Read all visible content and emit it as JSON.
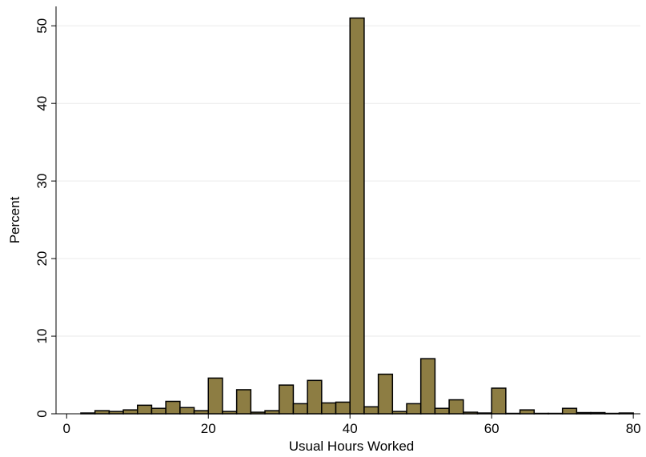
{
  "chart_data": {
    "type": "histogram",
    "xlabel": "Usual Hours Worked",
    "ylabel": "Percent",
    "bins": [
      2,
      4,
      6,
      8,
      10,
      12,
      14,
      16,
      18,
      20,
      22,
      24,
      26,
      28,
      30,
      32,
      34,
      36,
      38,
      40,
      42,
      44,
      46,
      48,
      50,
      52,
      54,
      56,
      58,
      60,
      62,
      64,
      66,
      68,
      70,
      72,
      74,
      76,
      78,
      80
    ],
    "values": [
      0.1,
      0.4,
      0.3,
      0.5,
      1.1,
      0.7,
      1.6,
      0.8,
      0.4,
      4.6,
      0.3,
      3.1,
      0.2,
      0.4,
      3.7,
      1.3,
      4.3,
      1.4,
      1.5,
      51,
      0.9,
      5.1,
      0.3,
      1.3,
      7.1,
      0.7,
      1.8,
      0.2,
      0.1,
      3.3,
      0.05,
      0.5,
      0.05,
      0.05,
      0.7,
      0.15,
      0.15,
      0.05,
      0.1
    ],
    "color": "#8d7d43",
    "xlim": [
      -1.5,
      81
    ],
    "ylim": [
      0,
      52.5
    ],
    "xticks": [
      0,
      20,
      40,
      60,
      80
    ],
    "yticks": [
      0,
      10,
      20,
      30,
      40,
      50
    ],
    "grid": true
  }
}
